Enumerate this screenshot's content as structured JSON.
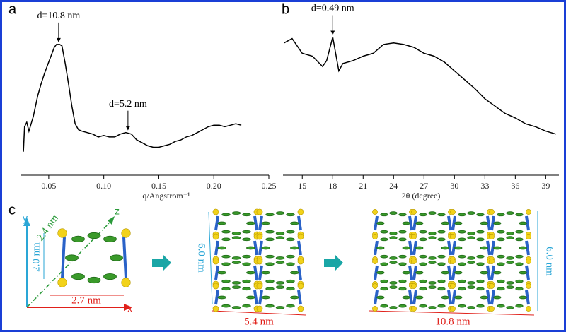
{
  "chart_data": [
    {
      "type": "line",
      "panel": "a",
      "xlabel": "q/Angstrom⁻¹",
      "color": "#000000",
      "x": [
        0.027,
        0.028,
        0.03,
        0.032,
        0.034,
        0.036,
        0.038,
        0.04,
        0.043,
        0.046,
        0.049,
        0.052,
        0.055,
        0.057,
        0.06,
        0.062,
        0.065,
        0.068,
        0.071,
        0.074,
        0.077,
        0.08,
        0.085,
        0.09,
        0.095,
        0.1,
        0.105,
        0.11,
        0.115,
        0.12,
        0.125,
        0.13,
        0.135,
        0.14,
        0.145,
        0.15,
        0.155,
        0.16,
        0.165,
        0.17,
        0.175,
        0.18,
        0.185,
        0.19,
        0.195,
        0.2,
        0.205,
        0.21,
        0.215,
        0.22,
        0.225
      ],
      "values": [
        16,
        33,
        36,
        30,
        35,
        40,
        47,
        54,
        62,
        69,
        75,
        81,
        87,
        89,
        89,
        88,
        76,
        62,
        47,
        35,
        31,
        30,
        29,
        28,
        26,
        27,
        26,
        26,
        28,
        29,
        28,
        24,
        22,
        20,
        19,
        19,
        20,
        21,
        23,
        24,
        26,
        27,
        29,
        31,
        33,
        34,
        34,
        33,
        34,
        35,
        34
      ],
      "xlim": [
        0.025,
        0.25
      ],
      "ylim": [
        0,
        100
      ],
      "xticks": [
        0.05,
        {
          "value": 0.1,
          "label": "0.10"
        },
        0.15,
        {
          "value": 0.2,
          "label": "0.20"
        },
        0.25
      ],
      "annotations": [
        {
          "text": "d=10.8 nm",
          "x": 0.059
        },
        {
          "text": "d=5.2 nm",
          "x": 0.122
        }
      ]
    },
    {
      "type": "line",
      "panel": "b",
      "xlabel": "2θ (degree)",
      "color": "#000000",
      "x": [
        13.2,
        14,
        15,
        16,
        17,
        17.4,
        18,
        18.6,
        19,
        20,
        21,
        22,
        23,
        24,
        25,
        26,
        27,
        28,
        29,
        30,
        31,
        32,
        33,
        34,
        35,
        36,
        37,
        38,
        39,
        40
      ],
      "values": [
        90,
        93,
        83,
        81,
        74,
        78,
        94,
        71,
        76,
        78,
        81,
        83,
        89,
        90,
        89,
        87,
        83,
        81,
        77,
        71,
        65,
        59,
        52,
        47,
        42,
        39,
        35,
        33,
        30,
        28
      ],
      "xlim": [
        13.1,
        40.3
      ],
      "ylim": [
        0,
        100
      ],
      "xticks": [
        15,
        18,
        21,
        24,
        27,
        30,
        33,
        36,
        39
      ],
      "annotations": [
        {
          "text": "d=0.49 nm",
          "x": 18
        }
      ]
    }
  ],
  "diagram": {
    "panel": "c",
    "axes": {
      "x": "x",
      "y": "y",
      "z": "z"
    },
    "unit_cell": {
      "depth": "2.4 nm",
      "height": "2.0 nm",
      "width": "2.7 nm"
    },
    "stack_2": {
      "height": "6.0 nm",
      "width": "5.4 nm"
    },
    "stack_4": {
      "height": "6.0 nm",
      "width": "10.8 nm"
    }
  }
}
